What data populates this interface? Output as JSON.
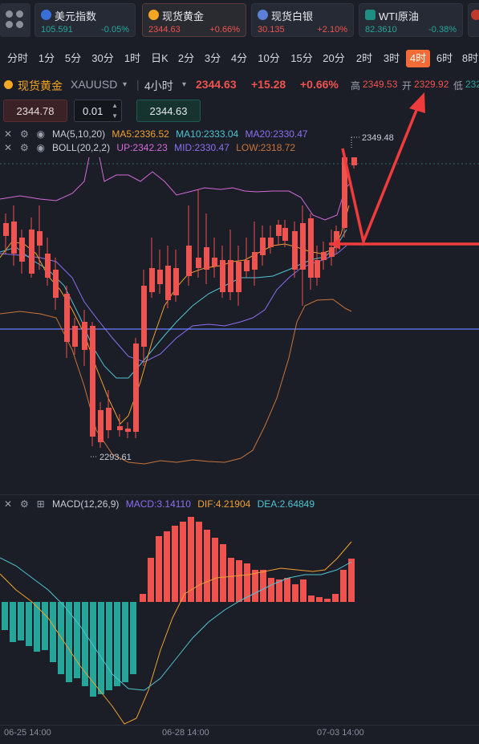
{
  "tickers": [
    {
      "name": "美元指数",
      "price": "105.591",
      "change": "-0.05%",
      "dir": "down",
      "flag": "#3a6fd8"
    },
    {
      "name": "现货黄金",
      "price": "2344.63",
      "change": "+0.66%",
      "dir": "up",
      "flag": "#f5a623"
    },
    {
      "name": "现货白银",
      "price": "30.135",
      "change": "+2.10%",
      "dir": "up",
      "flag": "#5b7fd6"
    },
    {
      "name": "WTI原油",
      "price": "82.3610",
      "change": "-0.38%",
      "dir": "down",
      "flag": "#1f8f84"
    }
  ],
  "timeframes": [
    "分时",
    "1分",
    "5分",
    "30分",
    "1时",
    "日K",
    "2分",
    "3分",
    "4分",
    "10分",
    "15分",
    "20分",
    "2时",
    "3时",
    "4时",
    "6时",
    "8时"
  ],
  "active_timeframe": "4时",
  "symbol": {
    "name": "现货黄金",
    "code": "XAUUSD",
    "period": "4小时",
    "price": "2344.63",
    "change": "+15.28",
    "change_pct": "+0.66%",
    "high_label": "高",
    "high": "2349.53",
    "open_label": "开",
    "open": "2329.92",
    "low_label": "低",
    "low": "232"
  },
  "trade": {
    "sell": "2344.78",
    "qty": "0.01",
    "buy": "2344.63"
  },
  "indicators": {
    "ma": {
      "label": "MA(5,10,20)",
      "ma5": "MA5:2336.52",
      "ma10": "MA10:2333.04",
      "ma20": "MA20:2330.47"
    },
    "boll": {
      "label": "BOLL(20,2,2)",
      "up": "UP:2342.23",
      "mid": "MID:2330.47",
      "low": "LOW:2318.72"
    },
    "macd": {
      "label": "MACD(12,26,9)",
      "macd": "MACD:3.14110",
      "dif": "DIF:4.21904",
      "dea": "DEA:2.64849"
    }
  },
  "annotations": {
    "high_marker": "2349.48",
    "low_marker": "2293.61"
  },
  "dates": [
    "06-25 14:00",
    "06-28 14:00",
    "07-03 14:00"
  ],
  "colors": {
    "up": "#ef5350",
    "down": "#26a69a",
    "accent": "#f36b36",
    "ma5": "#f0a030",
    "ma10": "#4fc3d0",
    "ma20": "#8c6ff0",
    "boll_up": "#d46ad8",
    "boll_low": "#c8743a",
    "arrow": "#ee3b3b"
  },
  "icons": [
    "grid-menu-icon",
    "close-icon",
    "settings-icon",
    "eye-icon",
    "expand-icon",
    "dropdown-caret-icon"
  ]
}
